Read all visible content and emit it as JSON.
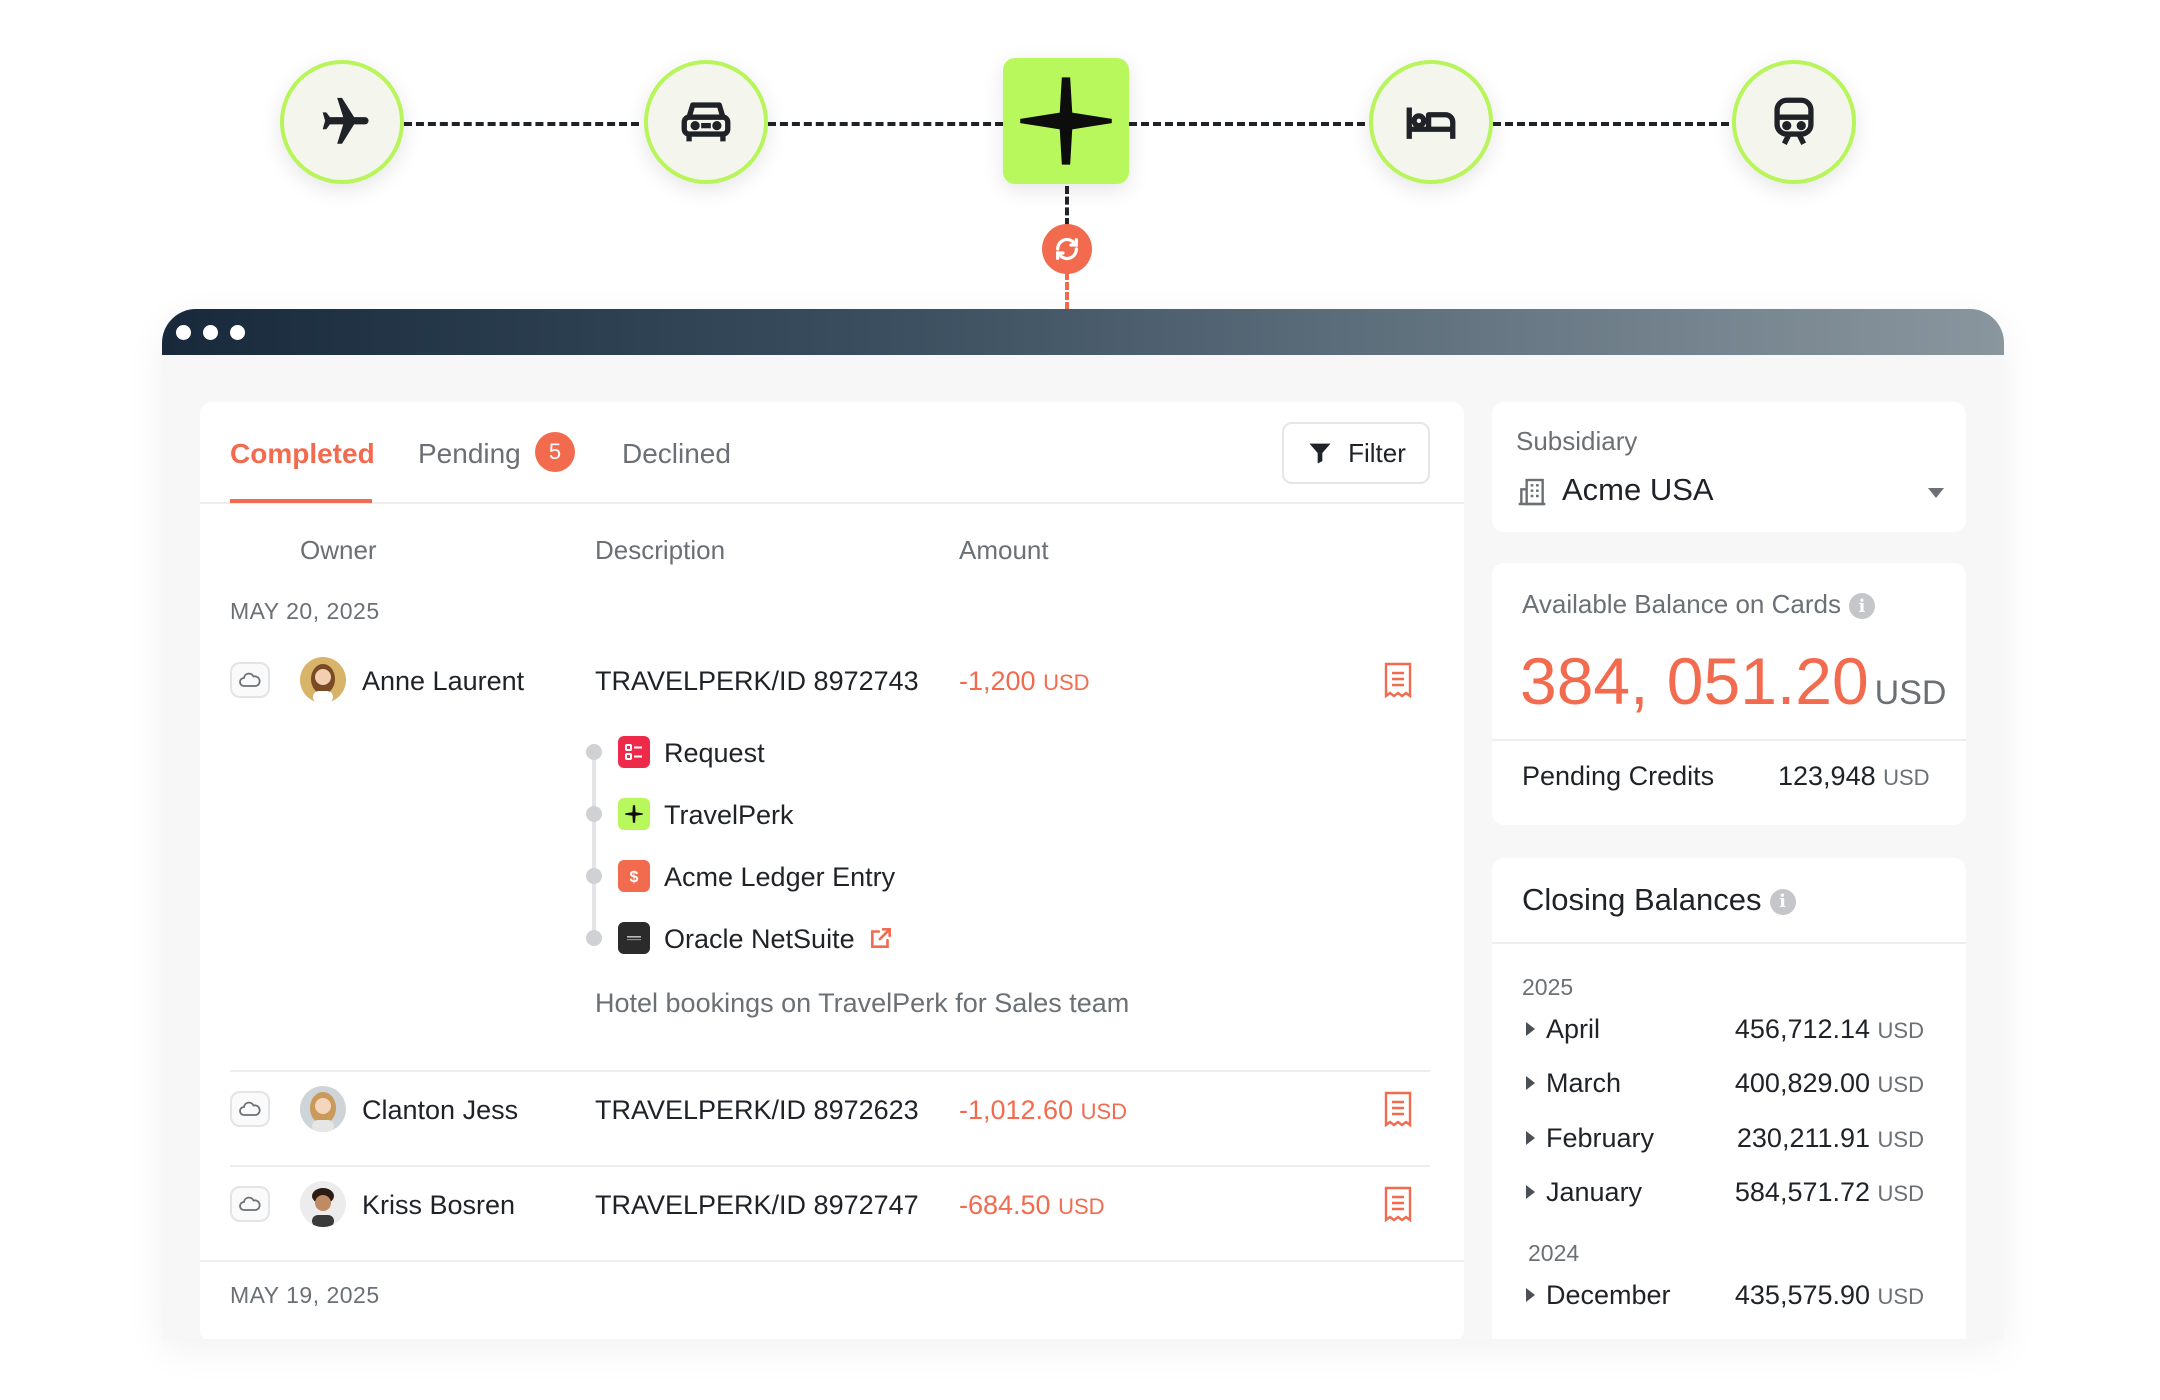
{
  "flow": {
    "nodes": [
      "plane-icon",
      "car-icon",
      "travelperk-logo-icon",
      "bed-icon",
      "train-icon"
    ],
    "sync": "sync-icon"
  },
  "tabs": {
    "completed": "Completed",
    "pending": "Pending",
    "pending_count": "5",
    "declined": "Declined",
    "active": "Completed"
  },
  "filter_label": "Filter",
  "columns": {
    "owner": "Owner",
    "description": "Description",
    "amount": "Amount"
  },
  "groups": [
    {
      "date": "MAY 20, 2025",
      "transactions": [
        {
          "owner": "Anne Laurent",
          "description": "TRAVELPERK/ID 8972743",
          "amount": "-1,200",
          "currency": "USD",
          "expanded": true,
          "chain": [
            {
              "label": "Request",
              "icon": "request-icon"
            },
            {
              "label": "TravelPerk",
              "icon": "travelperk-icon"
            },
            {
              "label": "Acme Ledger Entry",
              "icon": "dollar-icon"
            },
            {
              "label": "Oracle NetSuite",
              "icon": "oracle-netsuite-icon"
            }
          ],
          "memo": "Hotel bookings on TravelPerk for Sales team"
        },
        {
          "owner": "Clanton Jess",
          "description": "TRAVELPERK/ID 8972623",
          "amount": "-1,012.60",
          "currency": "USD"
        },
        {
          "owner": "Kriss Bosren",
          "description": "TRAVELPERK/ID 8972747",
          "amount": "-684.50",
          "currency": "USD"
        }
      ]
    },
    {
      "date": "MAY 19, 2025",
      "transactions": []
    }
  ],
  "subsidiary": {
    "label": "Subsidiary",
    "value": "Acme USA"
  },
  "balance": {
    "label": "Available Balance on Cards",
    "value": "384, 051.20",
    "currency": "USD",
    "pending_label": "Pending Credits",
    "pending_value": "123,948",
    "pending_currency": "USD"
  },
  "closing": {
    "title": "Closing Balances",
    "years": [
      {
        "year": "2025",
        "months": [
          {
            "month": "April",
            "value": "456,712.14",
            "currency": "USD"
          },
          {
            "month": "March",
            "value": "400,829.00",
            "currency": "USD"
          },
          {
            "month": "February",
            "value": "230,211.91",
            "currency": "USD"
          },
          {
            "month": "January",
            "value": "584,571.72",
            "currency": "USD"
          }
        ]
      },
      {
        "year": "2024",
        "months": [
          {
            "month": "December",
            "value": "435,575.90",
            "currency": "USD"
          }
        ]
      }
    ]
  },
  "colors": {
    "accent": "#f26b4f",
    "lime": "#b9f85c",
    "text": "#1f2328",
    "muted": "#6b7075"
  }
}
